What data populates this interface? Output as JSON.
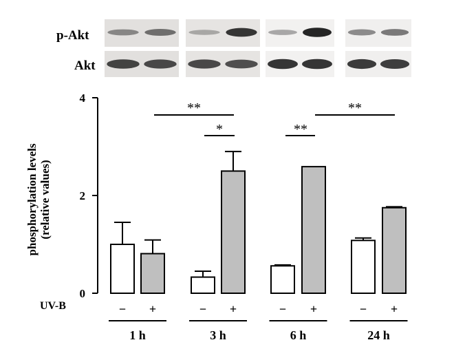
{
  "blot": {
    "row_labels": [
      "p-Akt",
      "Akt"
    ],
    "panels": [
      "1 h",
      "3 h",
      "6 h",
      "24 h"
    ]
  },
  "chart_data": {
    "type": "bar",
    "title": "",
    "ylabel_line1": "phosphorylation levels",
    "ylabel_line2": "(relative values)",
    "ylim": [
      0,
      4
    ],
    "yticks": [
      "0",
      "2",
      "4"
    ],
    "treatment_label": "UV-B",
    "treatment_signs": [
      "−",
      "+"
    ],
    "groups": [
      "1 h",
      "3 h",
      "6 h",
      "24 h"
    ],
    "series": [
      {
        "treatment": "−",
        "color": "#ffffff",
        "values": [
          1.0,
          0.33,
          0.56,
          1.08
        ],
        "errors": [
          0.45,
          0.12,
          0.02,
          0.05
        ]
      },
      {
        "treatment": "+",
        "color": "#bfbfbf",
        "values": [
          0.81,
          2.5,
          2.59,
          1.75
        ],
        "errors": [
          0.28,
          0.4,
          0.0,
          0.02
        ]
      }
    ],
    "significance": [
      {
        "label": "**",
        "from": "1 h (−)",
        "to": "3 h (+)"
      },
      {
        "label": "*",
        "from": "3 h (−)",
        "to": "3 h (+)"
      },
      {
        "label": "**",
        "from": "6 h (−)",
        "to": "6 h (+)"
      },
      {
        "label": "**",
        "from": "6 h (+)",
        "to": "24 h (+)"
      }
    ],
    "grid": false,
    "legend": "none"
  }
}
